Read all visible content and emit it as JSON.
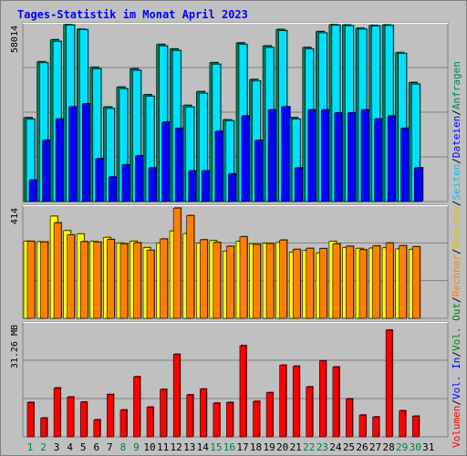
{
  "chart_data": {
    "type": "bar",
    "title": "Tages-Statistik im Monat April 2023",
    "days": [
      "1",
      "2",
      "3",
      "4",
      "5",
      "6",
      "7",
      "8",
      "9",
      "10",
      "11",
      "12",
      "13",
      "14",
      "15",
      "16",
      "17",
      "18",
      "19",
      "20",
      "21",
      "22",
      "23",
      "24",
      "25",
      "26",
      "27",
      "28",
      "29",
      "30",
      "31"
    ],
    "weekend_days": [
      "1",
      "2",
      "8",
      "9",
      "15",
      "16",
      "22",
      "23",
      "29",
      "30"
    ],
    "panels": [
      {
        "name": "requests",
        "max_label": "58014",
        "ylim": [
          0,
          58014
        ],
        "series": [
          {
            "name": "Anfragen",
            "color": "#00805c",
            "values": [
              27500,
              45800,
              53000,
              58000,
              56500,
              44000,
              31000,
              37500,
              43500,
              35000,
              51500,
              50000,
              31500,
              36000,
              45500,
              26800,
              52000,
              40000,
              51000,
              56400,
              27500,
              50500,
              55700,
              58000,
              57900,
              56800,
              57700,
              57900,
              48800,
              39000,
              0
            ]
          },
          {
            "name": "Dateien",
            "color": "#00e0ff",
            "values": [
              27000,
              45500,
              52500,
              57800,
              56300,
              43500,
              30500,
              37000,
              43000,
              34500,
              51000,
              49500,
              31000,
              35500,
              45000,
              26500,
              51500,
              39500,
              50500,
              56000,
              27000,
              50000,
              55300,
              57800,
              57600,
              56500,
              57500,
              57700,
              48500,
              38500,
              0
            ]
          },
          {
            "name": "Seiten",
            "color": "#0000ff",
            "values": [
              7000,
              20000,
              27000,
              31000,
              32000,
              14000,
              8000,
              12000,
              15000,
              11000,
              26000,
              24000,
              10000,
              10000,
              23000,
              9000,
              28000,
              20000,
              30000,
              31000,
              11000,
              30000,
              30000,
              29000,
              29000,
              30000,
              27000,
              28000,
              24000,
              11000,
              0
            ]
          }
        ]
      },
      {
        "name": "visits",
        "max_label": "414",
        "ylim": [
          0,
          414
        ],
        "series": [
          {
            "name": "Besuche",
            "color": "#ffff00",
            "values": [
              287,
              285,
              380,
              326,
              314,
              286,
              301,
              280,
              287,
              263,
              280,
              325,
              315,
              280,
              289,
              250,
              286,
              277,
              279,
              282,
              246,
              252,
              243,
              286,
              263,
              260,
              261,
              262,
              258,
              256,
              0
            ]
          },
          {
            "name": "Rechner",
            "color": "#ff8000",
            "values": [
              286,
              284,
              355,
              310,
              285,
              283,
              293,
              277,
              281,
              253,
              295,
              410,
              382,
              292,
              282,
              268,
              303,
              275,
              278,
              291,
              256,
              260,
              259,
              277,
              268,
              255,
              269,
              280,
              270,
              266,
              0
            ]
          }
        ]
      },
      {
        "name": "volume",
        "max_label": "31.26 MB",
        "ylim": [
          0,
          31.26
        ],
        "series": [
          {
            "name": "Vol. Out",
            "color": "#ffff00",
            "values": []
          },
          {
            "name": "Vol. In",
            "color": "#0000ff",
            "values": []
          },
          {
            "name": "Volumen",
            "color": "#ff0000",
            "values": [
              9.5,
              5.2,
              13.5,
              11.0,
              9.6,
              4.7,
              11.7,
              7.4,
              16.6,
              8.2,
              13.1,
              22.8,
              11.6,
              13.2,
              9.3,
              9.5,
              25.2,
              9.8,
              12.2,
              19.8,
              19.5,
              13.8,
              21.0,
              19.3,
              10.5,
              6.0,
              5.5,
              29.5,
              7.2,
              5.7,
              0
            ]
          }
        ]
      }
    ],
    "legend": [
      "Volumen",
      "Vol. In",
      "Vol. Out",
      "Rechner",
      "Besuche",
      "Seiten",
      "Dateien",
      "Anfragen"
    ],
    "legend_placement": "right",
    "grid": true
  }
}
